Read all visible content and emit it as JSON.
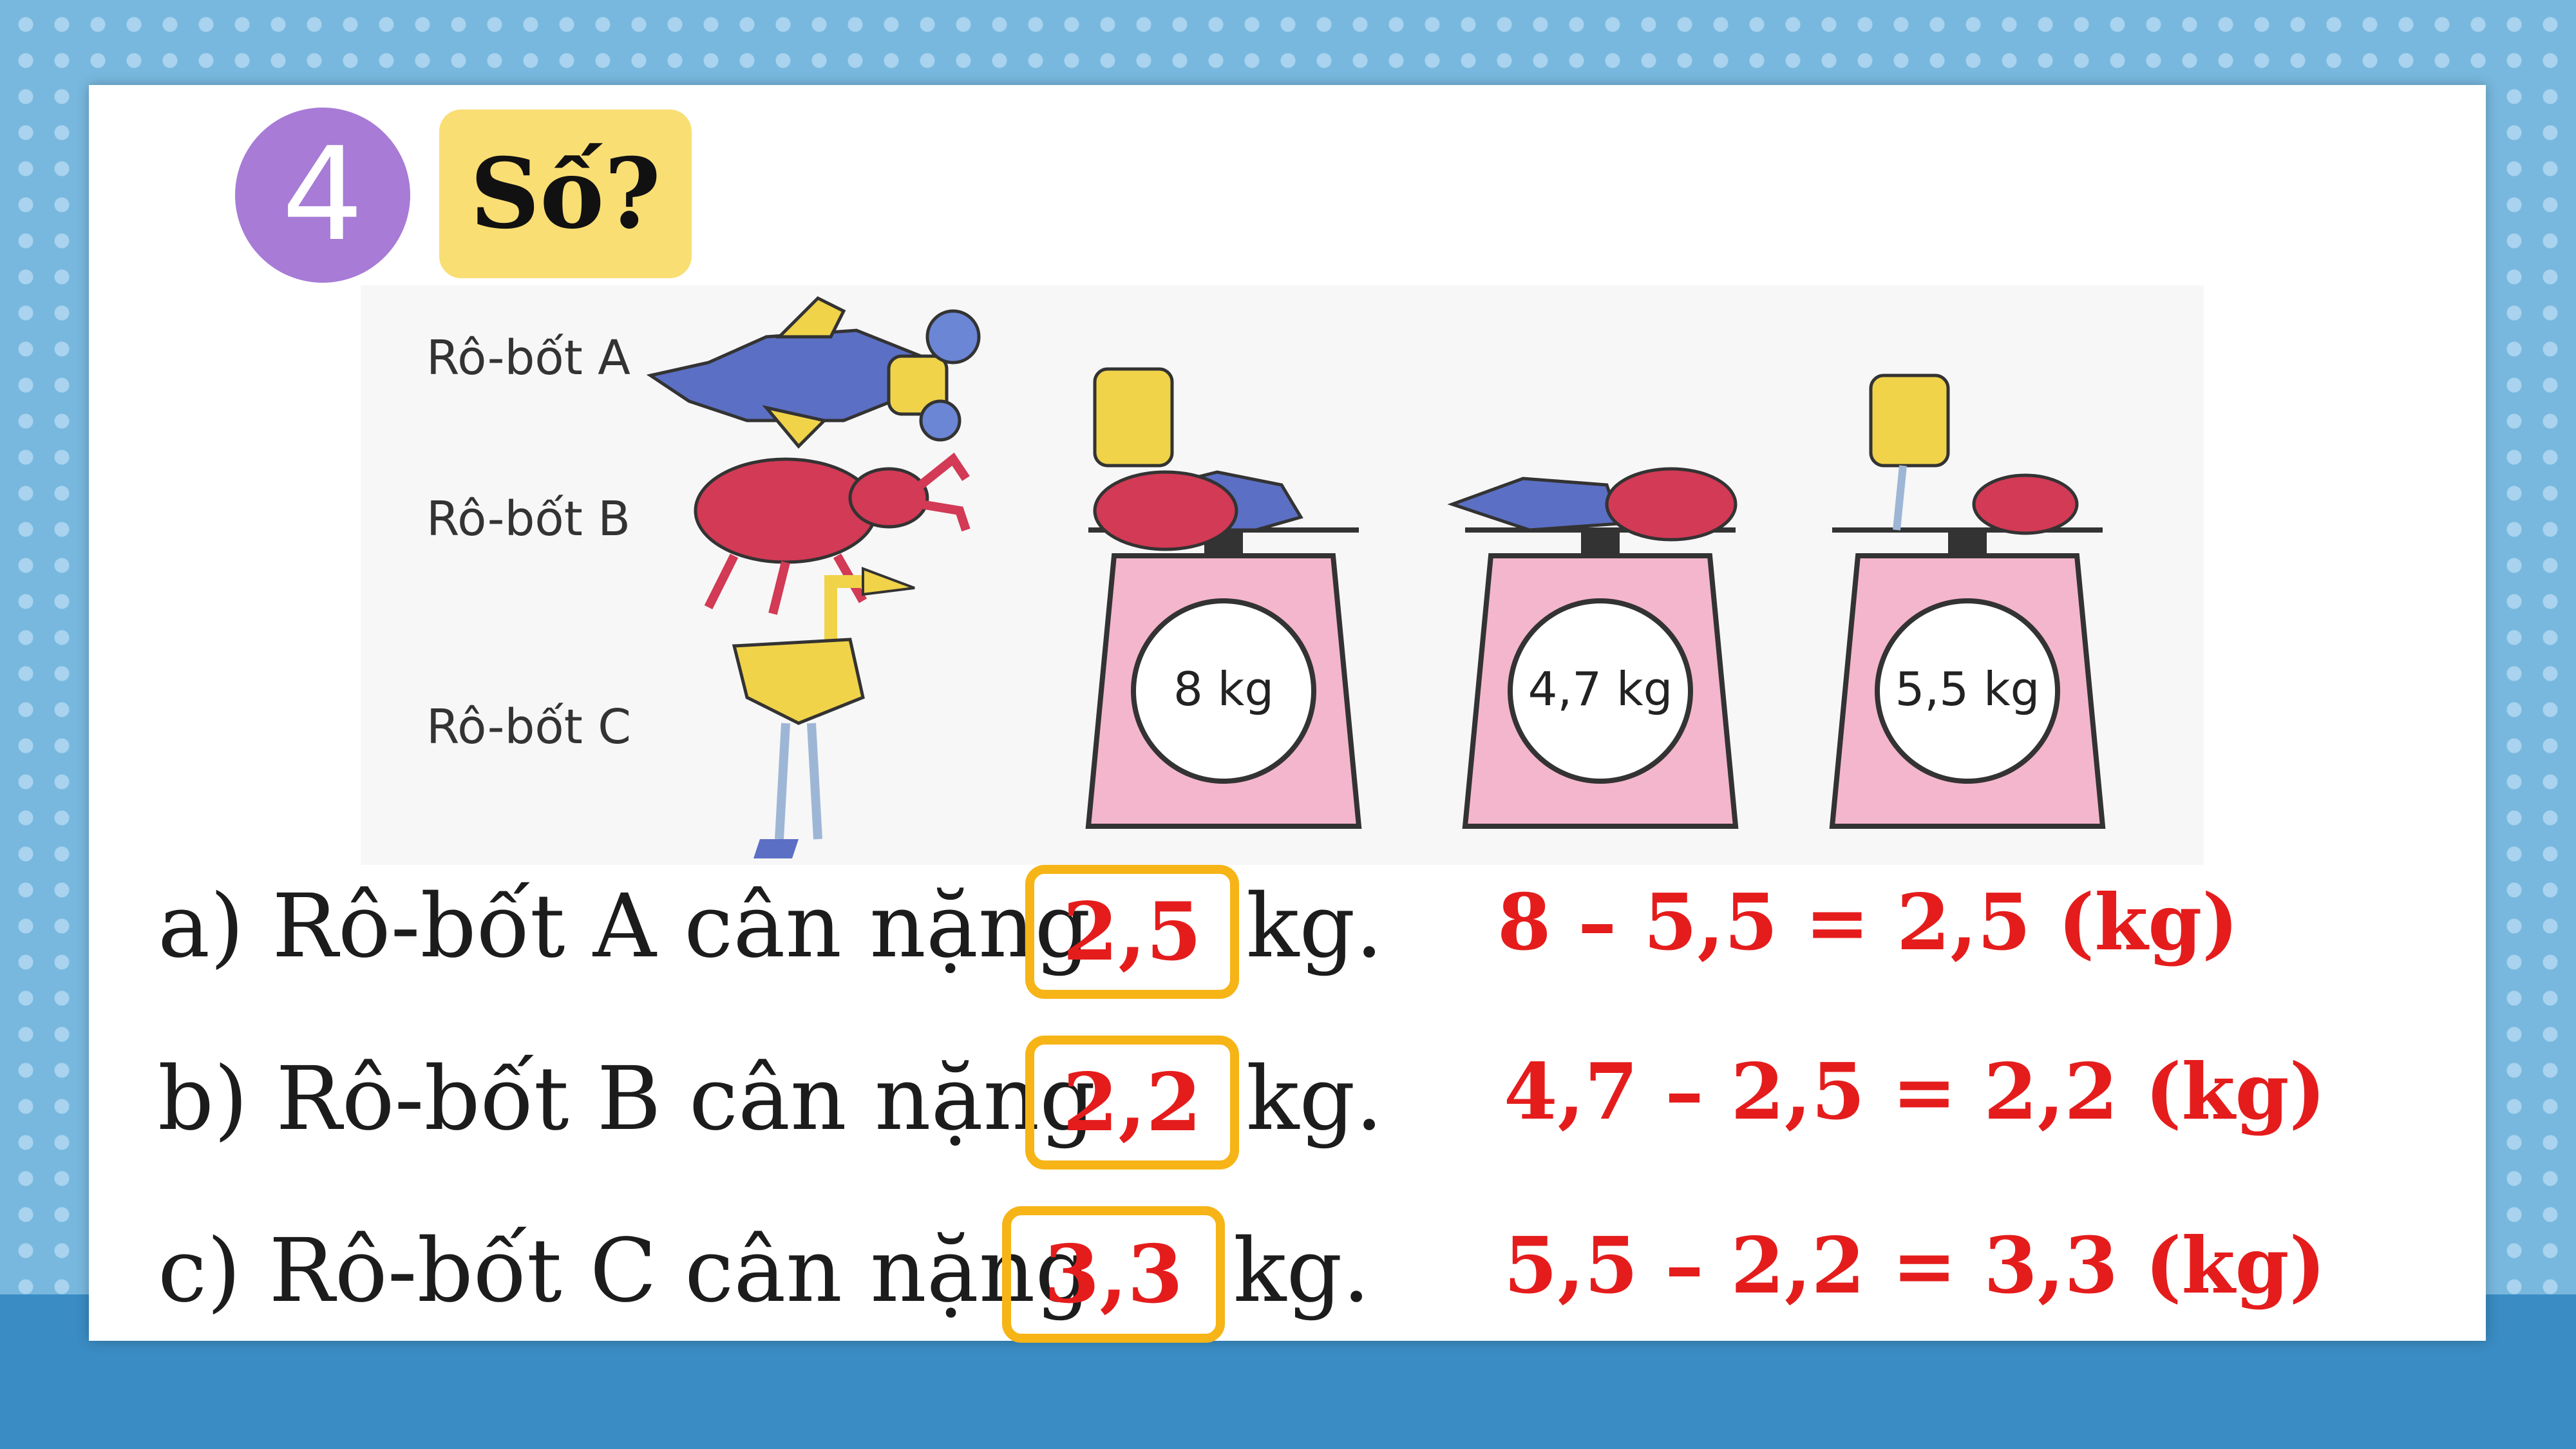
{
  "exercise": {
    "number": "4",
    "title": "Số?"
  },
  "figure": {
    "robots": [
      "Rô-bốt A",
      "Rô-bốt B",
      "Rô-bốt C"
    ],
    "scales": [
      "8 kg",
      "4,7 kg",
      "5,5 kg"
    ]
  },
  "questions": [
    {
      "prefix": "a) Rô-bốt A cân nặng",
      "answer": "2,5",
      "unit": "kg.",
      "calc": "8 – 5,5 = 2,5 (kg)"
    },
    {
      "prefix": "b) Rô-bốt B cân nặng",
      "answer": "2,2",
      "unit": "kg.",
      "calc": "4,7 – 2,5 = 2,2 (kg)"
    },
    {
      "prefix": "c) Rô-bốt C cân nặng",
      "answer": "3,3",
      "unit": "kg.",
      "calc": "5,5 – 2,2 = 3,3 (kg)"
    }
  ],
  "colors": {
    "badge": "#a77bd6",
    "tag": "#f9de74",
    "answer": "#e51c1c",
    "box": "#f6b416",
    "scale": "#f4b6cc"
  }
}
